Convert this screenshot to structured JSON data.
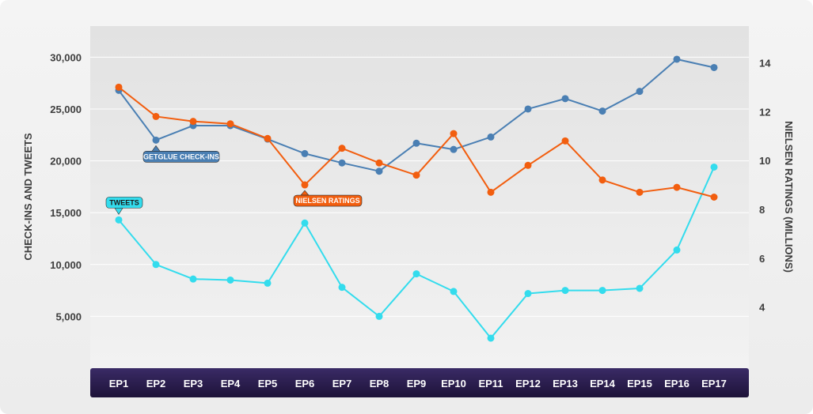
{
  "chart_data": {
    "type": "line",
    "categories": [
      "EP1",
      "EP2",
      "EP3",
      "EP4",
      "EP5",
      "EP6",
      "EP7",
      "EP8",
      "EP9",
      "EP10",
      "EP11",
      "EP12",
      "EP13",
      "EP14",
      "EP15",
      "EP16",
      "EP17"
    ],
    "left_axis": {
      "label": "CHECK-INS AND TWEETS",
      "ticks": [
        "5,000",
        "10,000",
        "15,000",
        "20,000",
        "25,000",
        "30,000"
      ],
      "tick_values": [
        5000,
        10000,
        15000,
        20000,
        25000,
        30000
      ],
      "range": [
        0,
        33000
      ]
    },
    "right_axis": {
      "label": "NIELSEN RATINGS (MILLIONS)",
      "ticks": [
        "4",
        "6",
        "8",
        "10",
        "12",
        "14"
      ],
      "tick_values": [
        4,
        6,
        8,
        10,
        12,
        14
      ],
      "range": [
        1.5,
        15.5
      ]
    },
    "series": [
      {
        "name": "GETGLUE CHECK-INS",
        "axis": "left",
        "color": "#4a7fb3",
        "values": [
          26800,
          22000,
          23400,
          23400,
          22100,
          20700,
          19800,
          19000,
          21700,
          21100,
          22300,
          25000,
          26000,
          24800,
          26700,
          29800,
          29000
        ]
      },
      {
        "name": "NIELSEN RATINGS",
        "axis": "right",
        "color": "#f25e0f",
        "values": [
          13.0,
          11.8,
          11.6,
          11.5,
          10.9,
          9.0,
          10.5,
          9.9,
          9.4,
          11.1,
          8.7,
          9.8,
          10.8,
          9.2,
          8.7,
          8.9,
          8.5
        ]
      },
      {
        "name": "TWEETS",
        "axis": "left",
        "color": "#33dced",
        "values": [
          14300,
          10000,
          8600,
          8500,
          8200,
          14000,
          7800,
          5000,
          9100,
          7400,
          2900,
          7200,
          7500,
          7500,
          7700,
          11400,
          19400
        ]
      }
    ],
    "grid": true
  }
}
